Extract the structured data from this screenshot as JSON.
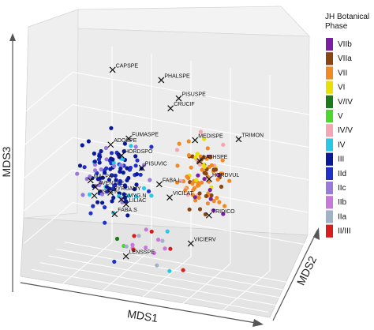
{
  "chart_data": {
    "type": "scatter",
    "projection": "3d",
    "grid": true,
    "legend_position": "right",
    "xlabel": "MDS1",
    "ylabel": "MDS2",
    "zlabel": "MDS3",
    "legend": {
      "title_lines": [
        "JH Botanical",
        "Phase"
      ],
      "entries": [
        {
          "label": "VIIb",
          "color": "#7b1fa2"
        },
        {
          "label": "VIIa",
          "color": "#8b4513"
        },
        {
          "label": "VII",
          "color": "#f08a24"
        },
        {
          "label": "VI",
          "color": "#e8e000"
        },
        {
          "label": "V/IV",
          "color": "#1b7a1b"
        },
        {
          "label": "V",
          "color": "#4cd630"
        },
        {
          "label": "IV/V",
          "color": "#f4a6b4"
        },
        {
          "label": "IV",
          "color": "#28c8e6"
        },
        {
          "label": "III",
          "color": "#0a1a96"
        },
        {
          "label": "IId",
          "color": "#2030c8"
        },
        {
          "label": "IIc",
          "color": "#9a7ad8"
        },
        {
          "label": "IIb",
          "color": "#c878d8"
        },
        {
          "label": "IIa",
          "color": "#9fb2c6"
        },
        {
          "label": "II/III",
          "color": "#d61e1e"
        }
      ]
    },
    "species": [
      {
        "label": "CAPSPE",
        "x": 0.2,
        "y": 0.85,
        "z": 0.92
      },
      {
        "label": "PHALSPE",
        "x": 0.42,
        "y": 0.78,
        "z": 0.93
      },
      {
        "label": "PISUSPE",
        "x": 0.5,
        "y": 0.75,
        "z": 0.86
      },
      {
        "label": "CRUCIF",
        "x": 0.48,
        "y": 0.68,
        "z": 0.82
      },
      {
        "label": "TRIMON",
        "x": 0.78,
        "y": 0.62,
        "z": 0.74
      },
      {
        "label": "MEDISPE",
        "x": 0.6,
        "y": 0.6,
        "z": 0.7
      },
      {
        "label": "ADOSPE",
        "x": 0.26,
        "y": 0.52,
        "z": 0.62
      },
      {
        "label": "FUMASPE",
        "x": 0.33,
        "y": 0.55,
        "z": 0.66
      },
      {
        "label": "HORDSPO",
        "x": 0.31,
        "y": 0.5,
        "z": 0.58
      },
      {
        "label": "LATHSPE",
        "x": 0.63,
        "y": 0.55,
        "z": 0.61
      },
      {
        "label": "PISUVIC",
        "x": 0.4,
        "y": 0.48,
        "z": 0.54
      },
      {
        "label": "HORDVUL",
        "x": 0.68,
        "y": 0.5,
        "z": 0.54
      },
      {
        "label": "MALPAR",
        "x": 0.2,
        "y": 0.4,
        "z": 0.45
      },
      {
        "label": "AVENSPE",
        "x": 0.22,
        "y": 0.4,
        "z": 0.42
      },
      {
        "label": "PYRUAMY",
        "x": 0.28,
        "y": 0.42,
        "z": 0.4
      },
      {
        "label": "FABA.L",
        "x": 0.48,
        "y": 0.45,
        "z": 0.48
      },
      {
        "label": "VICILAT",
        "x": 0.53,
        "y": 0.42,
        "z": 0.43
      },
      {
        "label": "PISTA.N",
        "x": 0.22,
        "y": 0.38,
        "z": 0.38
      },
      {
        "label": "AMYG.N",
        "x": 0.33,
        "y": 0.4,
        "z": 0.38
      },
      {
        "label": "LILIAC",
        "x": 0.35,
        "y": 0.4,
        "z": 0.36
      },
      {
        "label": "TRIDICO",
        "x": 0.7,
        "y": 0.4,
        "z": 0.38
      },
      {
        "label": "FABA.S",
        "x": 0.31,
        "y": 0.36,
        "z": 0.31
      },
      {
        "label": "VICIERV",
        "x": 0.64,
        "y": 0.32,
        "z": 0.24
      },
      {
        "label": "LENSSPE",
        "x": 0.37,
        "y": 0.3,
        "z": 0.12
      }
    ]
  }
}
